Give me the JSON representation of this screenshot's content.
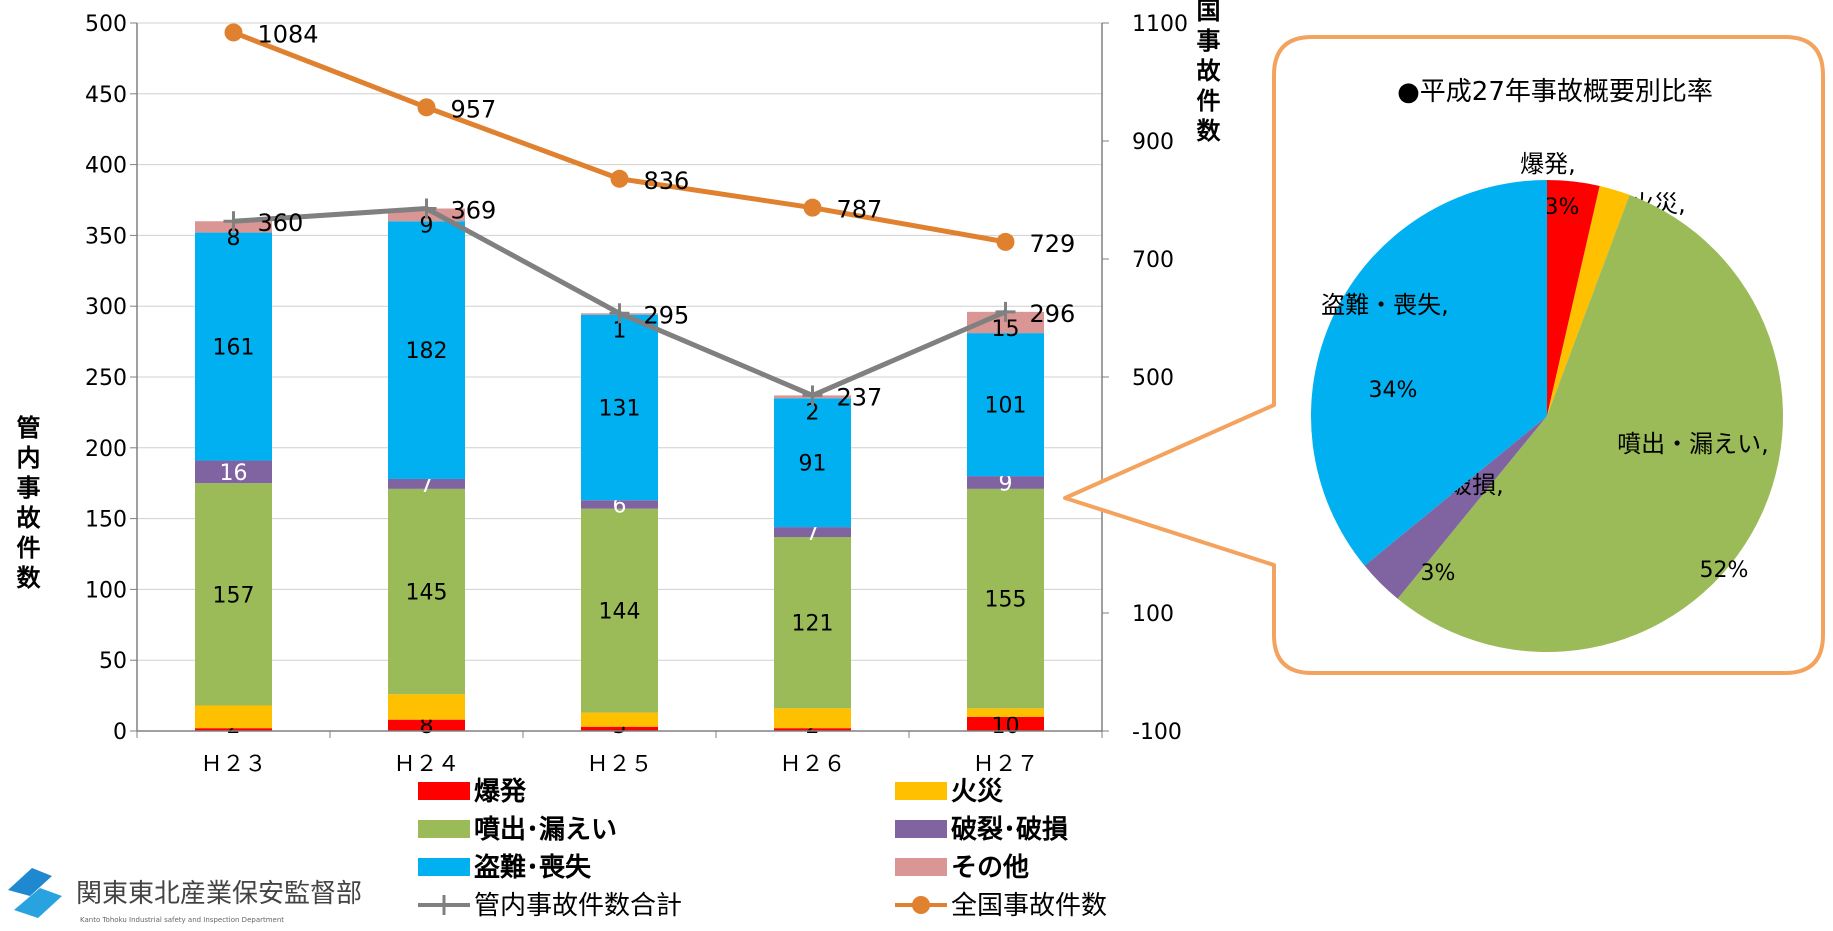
{
  "chart_data": [
    {
      "type": "bar",
      "stacked": true,
      "categories": [
        "Ｈ２３",
        "Ｈ２４",
        "Ｈ２５",
        "Ｈ２６",
        "Ｈ２７"
      ],
      "series": [
        {
          "name": "爆発",
          "values": [
            2,
            8,
            3,
            2,
            10
          ],
          "color": "#ff0000"
        },
        {
          "name": "火災",
          "values": [
            16,
            18,
            10,
            14,
            6
          ],
          "color": "#ffc000"
        },
        {
          "name": "噴出･漏えい",
          "values": [
            157,
            145,
            144,
            121,
            155
          ],
          "color": "#9bbb59"
        },
        {
          "name": "破裂･破損",
          "values": [
            16,
            7,
            6,
            7,
            9
          ],
          "color": "#8064a2"
        },
        {
          "name": "盗難･喪失",
          "values": [
            161,
            182,
            131,
            91,
            101
          ],
          "color": "#00b0f0"
        },
        {
          "name": "その他",
          "values": [
            8,
            9,
            1,
            2,
            15
          ],
          "color": "#d99694"
        }
      ],
      "lines": [
        {
          "name": "管内事故件数合計",
          "axis": "left",
          "values": [
            360,
            369,
            295,
            237,
            296
          ],
          "color": "#808080"
        },
        {
          "name": "全国事故件数",
          "axis": "right",
          "values": [
            1084,
            957,
            836,
            787,
            729
          ],
          "color": "#e0812f"
        }
      ],
      "ylabel_left": "管内事故件数",
      "ylabel_right": "全国事故件数",
      "ylim_left": [
        0,
        500
      ],
      "yticks_left": [
        0,
        50,
        100,
        150,
        200,
        250,
        300,
        350,
        400,
        450,
        500
      ],
      "ylim_right": [
        -100,
        1100
      ],
      "yticks_right": [
        -100,
        100,
        300,
        500,
        700,
        900,
        1100
      ],
      "grid": true,
      "legend": "bottom"
    },
    {
      "type": "pie",
      "title": "●平成27年事故概要別比率",
      "slices": [
        {
          "label": "爆発,",
          "percent": "3%",
          "value": 3.4,
          "color": "#ff0000"
        },
        {
          "label": "火災,",
          "percent": "2%",
          "value": 2.0,
          "color": "#ffc000"
        },
        {
          "label": "噴出・漏えい,",
          "percent": "52%",
          "value": 52.4,
          "color": "#9bbb59"
        },
        {
          "label": "破裂・破損,",
          "percent": "3%",
          "value": 3.0,
          "color": "#8064a2"
        },
        {
          "label": "盗難・喪失,",
          "percent": "34%",
          "value": 34.1,
          "color": "#00b0f0"
        }
      ]
    }
  ],
  "logo": {
    "name": "関東東北産業保安監督部",
    "subtitle": "Kanto Tohoku Industrial safety and Inspection Department"
  }
}
